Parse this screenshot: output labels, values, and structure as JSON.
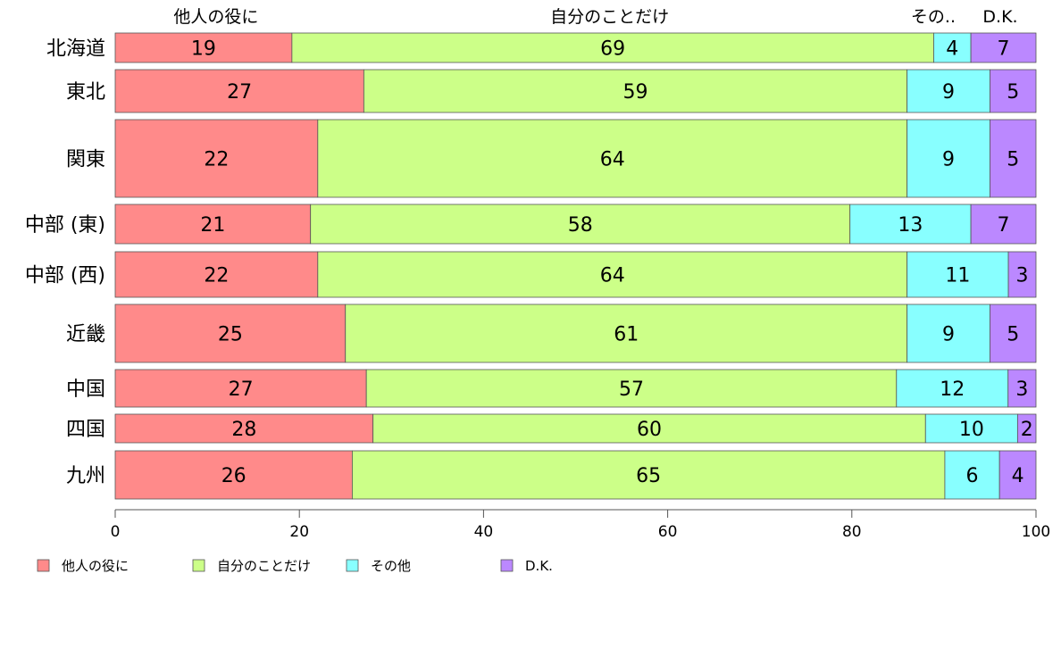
{
  "chart_data": {
    "type": "bar",
    "orientation": "horizontal",
    "stacked": true,
    "categories": [
      "北海道",
      "東北",
      "関東",
      "中部 (東)",
      "中部 (西)",
      "近畿",
      "中国",
      "四国",
      "九州"
    ],
    "series": [
      {
        "name": "他人の役に",
        "color": "#ff8a8a",
        "values": [
          19,
          27,
          22,
          21,
          22,
          25,
          27,
          28,
          26
        ]
      },
      {
        "name": "自分のことだけ",
        "color": "#ccff88",
        "values": [
          69,
          59,
          64,
          58,
          64,
          61,
          57,
          60,
          65
        ]
      },
      {
        "name": "その他",
        "color": "#88ffff",
        "values": [
          4,
          9,
          9,
          13,
          11,
          9,
          12,
          10,
          6
        ]
      },
      {
        "name": "D.K.",
        "color": "#bb88ff",
        "values": [
          7,
          5,
          5,
          7,
          3,
          5,
          3,
          2,
          4
        ]
      }
    ],
    "column_headers": [
      "他人の役に",
      "自分のことだけ",
      "その..",
      "D.K."
    ],
    "xlim": [
      0,
      100
    ],
    "x_ticks": [
      0,
      20,
      40,
      60,
      80,
      100
    ],
    "grid": false,
    "legend_position": "bottom"
  }
}
